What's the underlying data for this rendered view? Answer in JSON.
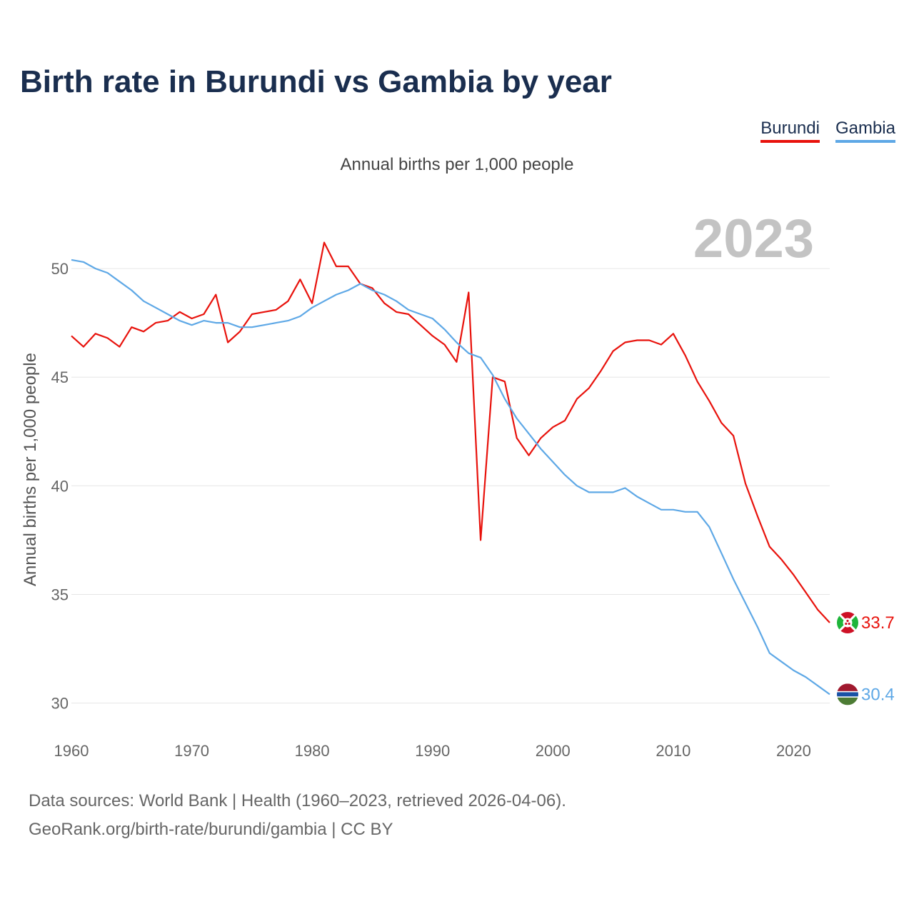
{
  "header": {
    "title": "Birth rate in Burundi vs Gambia by year",
    "subtitle": "Annual births per 1,000 people"
  },
  "legend": {
    "items": [
      {
        "label": "Burundi",
        "color": "#e8120c"
      },
      {
        "label": "Gambia",
        "color": "#5ea8e6"
      }
    ]
  },
  "footer": {
    "sources": "Data sources: World Bank | Health (1960–2023, retrieved 2026-04-06).",
    "credit": "GeoRank.org/birth-rate/burundi/gambia | CC BY"
  },
  "chart_data": {
    "type": "line",
    "title": "Birth rate in Burundi vs Gambia by year",
    "ylabel": "Annual births per 1,000 people",
    "xlabel": "",
    "year_label": "2023",
    "xlim": [
      1960,
      2023
    ],
    "ylim": [
      29,
      52.5
    ],
    "xticks": [
      1960,
      1970,
      1980,
      1990,
      2000,
      2010,
      2020
    ],
    "yticks": [
      30,
      35,
      40,
      45,
      50
    ],
    "grid": true,
    "x": [
      1960,
      1961,
      1962,
      1963,
      1964,
      1965,
      1966,
      1967,
      1968,
      1969,
      1970,
      1971,
      1972,
      1973,
      1974,
      1975,
      1976,
      1977,
      1978,
      1979,
      1980,
      1981,
      1982,
      1983,
      1984,
      1985,
      1986,
      1987,
      1988,
      1989,
      1990,
      1991,
      1992,
      1993,
      1994,
      1995,
      1996,
      1997,
      1998,
      1999,
      2000,
      2001,
      2002,
      2003,
      2004,
      2005,
      2006,
      2007,
      2008,
      2009,
      2010,
      2011,
      2012,
      2013,
      2014,
      2015,
      2016,
      2017,
      2018,
      2019,
      2020,
      2021,
      2022,
      2023
    ],
    "series": [
      {
        "name": "Burundi",
        "color": "#e8120c",
        "end_label": "33.7",
        "values": [
          46.9,
          46.4,
          47.0,
          46.8,
          46.4,
          47.3,
          47.1,
          47.5,
          47.6,
          48.0,
          47.7,
          47.9,
          48.8,
          46.6,
          47.1,
          47.9,
          48.0,
          48.1,
          48.5,
          49.5,
          48.4,
          51.2,
          50.1,
          50.1,
          49.3,
          49.1,
          48.4,
          48.0,
          47.9,
          47.4,
          46.9,
          46.5,
          45.7,
          48.9,
          37.5,
          45.0,
          44.8,
          42.2,
          41.4,
          42.2,
          42.7,
          43.0,
          44.0,
          44.5,
          45.3,
          46.2,
          46.6,
          46.7,
          46.7,
          46.5,
          47.0,
          46.0,
          44.8,
          43.9,
          42.9,
          42.3,
          40.1,
          38.6,
          37.2,
          36.6,
          35.9,
          35.1,
          34.3,
          33.7
        ]
      },
      {
        "name": "Gambia",
        "color": "#5ea8e6",
        "end_label": "30.4",
        "values": [
          50.4,
          50.3,
          50.0,
          49.8,
          49.4,
          49.0,
          48.5,
          48.2,
          47.9,
          47.6,
          47.4,
          47.6,
          47.5,
          47.5,
          47.3,
          47.3,
          47.4,
          47.5,
          47.6,
          47.8,
          48.2,
          48.5,
          48.8,
          49.0,
          49.3,
          49.0,
          48.8,
          48.5,
          48.1,
          47.9,
          47.7,
          47.2,
          46.6,
          46.1,
          45.9,
          45.1,
          44.0,
          43.1,
          42.4,
          41.7,
          41.1,
          40.5,
          40.0,
          39.7,
          39.7,
          39.7,
          39.9,
          39.5,
          39.2,
          38.9,
          38.9,
          38.8,
          38.8,
          38.1,
          36.9,
          35.7,
          34.6,
          33.5,
          32.3,
          31.9,
          31.5,
          31.2,
          30.8,
          30.4
        ]
      }
    ]
  }
}
